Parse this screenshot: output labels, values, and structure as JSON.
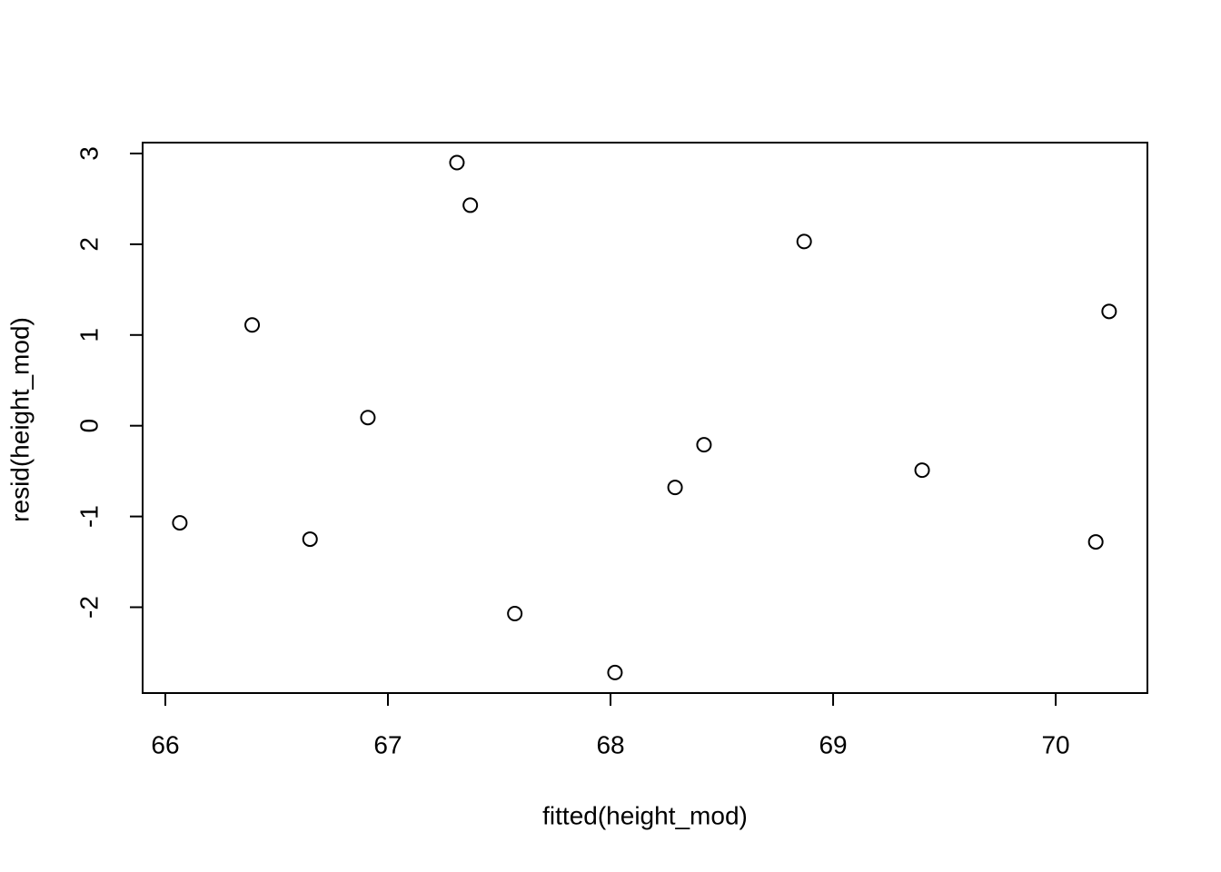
{
  "chart_data": {
    "type": "scatter",
    "xlabel": "fitted(height_mod)",
    "ylabel": "resid(height_mod)",
    "x": [
      66.065,
      66.39,
      66.65,
      66.91,
      67.31,
      67.37,
      67.57,
      68.02,
      68.29,
      68.42,
      68.87,
      69.4,
      70.18,
      70.24
    ],
    "values": [
      -1.07,
      1.11,
      -1.25,
      0.09,
      2.9,
      2.43,
      -2.07,
      -2.72,
      -0.68,
      -0.21,
      2.03,
      -0.49,
      -1.28,
      1.26
    ],
    "color": "#000000",
    "xlim": [
      65.898,
      70.412
    ],
    "ylim": [
      -2.946,
      3.12
    ],
    "xticks": [
      66,
      67,
      68,
      69,
      70
    ],
    "yticks": [
      -2,
      -1,
      0,
      1,
      2,
      3
    ]
  }
}
